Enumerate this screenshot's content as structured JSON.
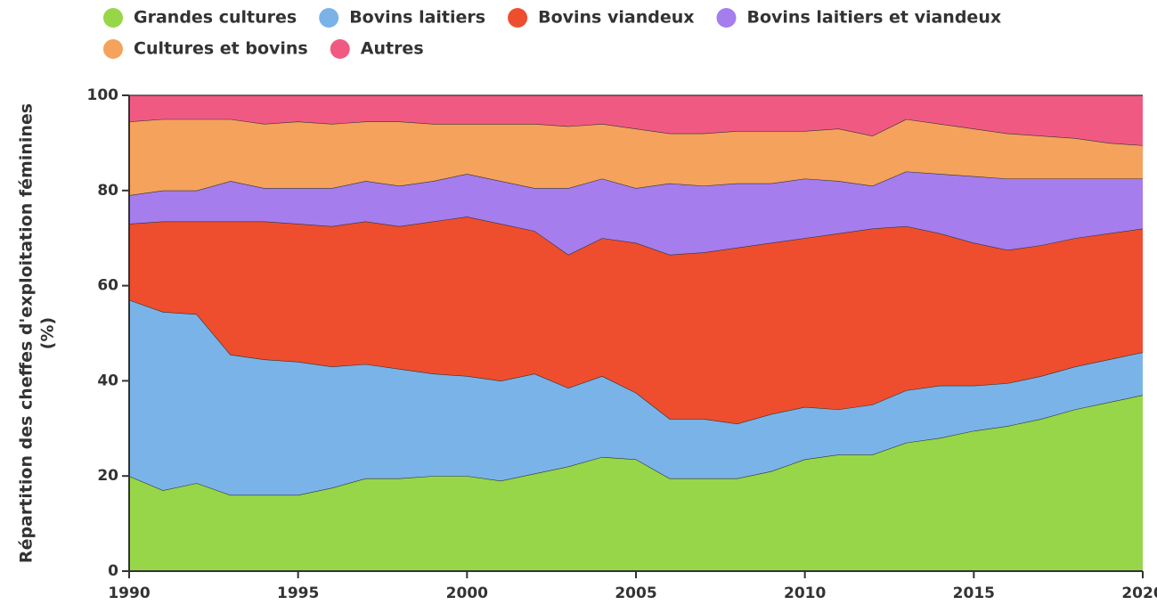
{
  "chart_data": {
    "type": "stacked_area",
    "y_label": [
      "Répartition des cheffes d'exploitation féminines",
      "(%)"
    ],
    "x": [
      1990,
      1991,
      1992,
      1993,
      1994,
      1995,
      1996,
      1997,
      1998,
      1999,
      2000,
      2001,
      2002,
      2003,
      2004,
      2005,
      2006,
      2007,
      2008,
      2009,
      2010,
      2011,
      2012,
      2013,
      2014,
      2015,
      2016,
      2017,
      2018,
      2019,
      2020
    ],
    "xlim": [
      1990,
      2020
    ],
    "xticks": [
      1990,
      1995,
      2000,
      2005,
      2010,
      2015,
      2020
    ],
    "ylim": [
      0,
      100
    ],
    "yticks": [
      0,
      20,
      40,
      60,
      80,
      100
    ],
    "legend": "top",
    "series": [
      {
        "name": "Grandes cultures",
        "color": "#97d648",
        "values": [
          20,
          17,
          18.5,
          16,
          16,
          16,
          17.5,
          19.5,
          19.5,
          20,
          20,
          19,
          20.5,
          22,
          24,
          23.5,
          19.5,
          19.5,
          19.5,
          21,
          23.5,
          24.5,
          24.5,
          27,
          28,
          29.5,
          30.5,
          32,
          34,
          35.5,
          37
        ]
      },
      {
        "name": "Bovins laitiers",
        "color": "#7ab3e8",
        "values": [
          37,
          37.5,
          35.5,
          29.5,
          28.5,
          28,
          25.5,
          24,
          23,
          21.5,
          21,
          21,
          21,
          16.5,
          17,
          14,
          12.5,
          12.5,
          11.5,
          12,
          11,
          9.5,
          10.5,
          11,
          11,
          9.5,
          9,
          9,
          9,
          9,
          9
        ]
      },
      {
        "name": "Bovins viandeux",
        "color": "#ee4e2e",
        "values": [
          16,
          19,
          19.5,
          28,
          29,
          29,
          29.5,
          30,
          30,
          32,
          33.5,
          33,
          30,
          28,
          29,
          31.5,
          34.5,
          35,
          37,
          36,
          35.5,
          37,
          37,
          34.5,
          32,
          30,
          28,
          27.5,
          27,
          26.5,
          26
        ]
      },
      {
        "name": "Bovins laitiers et viandeux",
        "color": "#a57ded",
        "values": [
          6,
          6.5,
          6.5,
          8.5,
          7,
          7.5,
          8,
          8.5,
          8.5,
          8.5,
          9,
          9,
          9,
          14,
          12.5,
          11.5,
          15,
          14,
          13.5,
          12.5,
          12.5,
          11,
          9,
          11.5,
          12.5,
          14,
          15,
          14,
          12.5,
          11.5,
          10.5
        ]
      },
      {
        "name": "Cultures et bovins",
        "color": "#f5a25d",
        "values": [
          15.5,
          15,
          15,
          13,
          13.5,
          14,
          13.5,
          12.5,
          13.5,
          12,
          10.5,
          12,
          13.5,
          13,
          11.5,
          12.5,
          10.5,
          11,
          11,
          11,
          10,
          11,
          10.5,
          11,
          10.5,
          10,
          9.5,
          9,
          8.5,
          7.5,
          7
        ]
      },
      {
        "name": "Autres",
        "color": "#f05a82",
        "values": [
          5.5,
          5,
          5,
          5,
          6,
          5.5,
          6,
          5.5,
          5.5,
          6,
          6,
          6,
          6,
          6.5,
          6,
          7,
          8,
          8,
          7.5,
          7.5,
          7.5,
          7,
          8.5,
          5,
          6,
          7,
          8,
          8.5,
          9,
          10,
          10.5
        ]
      }
    ]
  }
}
